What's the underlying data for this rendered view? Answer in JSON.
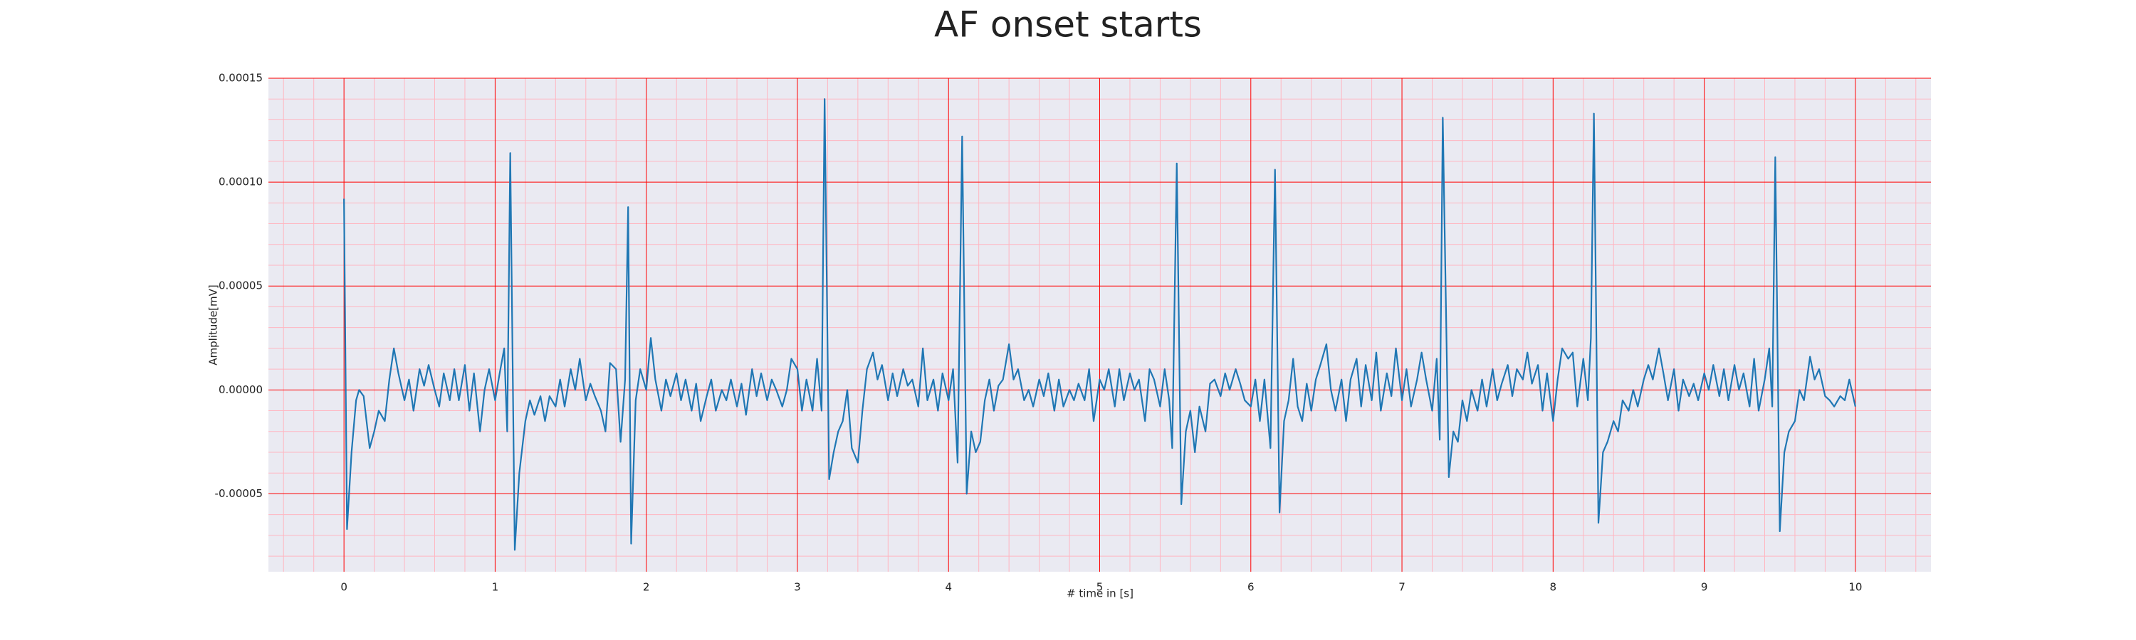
{
  "chart_data": {
    "type": "line",
    "title": "AF onset starts",
    "xlabel": "# time in [s]",
    "ylabel": "Amplitude[mV]",
    "color": "#1f77b4",
    "grid": true,
    "xlim": [
      -0.5,
      10.5
    ],
    "ylim": [
      -8.75e-05,
      0.00015
    ],
    "xticks": [
      0,
      1,
      2,
      3,
      4,
      5,
      6,
      7,
      8,
      9,
      10
    ],
    "yticks": [
      {
        "value": -5e-05,
        "label": "-0.00005"
      },
      {
        "value": 0,
        "label": "0.00000"
      },
      {
        "value": 5e-05,
        "label": "0.00005"
      },
      {
        "value": 0.0001,
        "label": "0.00010"
      },
      {
        "value": 0.00015,
        "label": "0.00015"
      }
    ],
    "x": [
      0,
      0.02,
      0.05,
      0.08,
      0.1,
      0.13,
      0.17,
      0.2,
      0.23,
      0.27,
      0.3,
      0.33,
      0.36,
      0.4,
      0.43,
      0.46,
      0.5,
      0.53,
      0.56,
      0.6,
      0.63,
      0.66,
      0.7,
      0.73,
      0.76,
      0.8,
      0.83,
      0.86,
      0.9,
      0.93,
      0.96,
      1.0,
      1.03,
      1.06,
      1.08,
      1.1,
      1.13,
      1.16,
      1.2,
      1.23,
      1.26,
      1.3,
      1.33,
      1.36,
      1.4,
      1.43,
      1.46,
      1.5,
      1.53,
      1.56,
      1.6,
      1.63,
      1.66,
      1.7,
      1.73,
      1.76,
      1.8,
      1.83,
      1.86,
      1.88,
      1.9,
      1.93,
      1.96,
      2.0,
      2.03,
      2.06,
      2.1,
      2.13,
      2.16,
      2.2,
      2.23,
      2.26,
      2.3,
      2.33,
      2.36,
      2.4,
      2.43,
      2.46,
      2.5,
      2.53,
      2.56,
      2.6,
      2.63,
      2.66,
      2.7,
      2.73,
      2.76,
      2.8,
      2.83,
      2.86,
      2.9,
      2.93,
      2.96,
      3.0,
      3.03,
      3.06,
      3.1,
      3.13,
      3.16,
      3.18,
      3.21,
      3.24,
      3.27,
      3.3,
      3.33,
      3.36,
      3.4,
      3.43,
      3.46,
      3.5,
      3.53,
      3.56,
      3.6,
      3.63,
      3.66,
      3.7,
      3.73,
      3.76,
      3.8,
      3.83,
      3.86,
      3.9,
      3.93,
      3.96,
      4.0,
      4.03,
      4.06,
      4.09,
      4.12,
      4.15,
      4.18,
      4.21,
      4.24,
      4.27,
      4.3,
      4.33,
      4.36,
      4.4,
      4.43,
      4.46,
      4.5,
      4.53,
      4.56,
      4.6,
      4.63,
      4.66,
      4.7,
      4.73,
      4.76,
      4.8,
      4.83,
      4.86,
      4.9,
      4.93,
      4.96,
      5.0,
      5.03,
      5.06,
      5.1,
      5.13,
      5.16,
      5.2,
      5.23,
      5.26,
      5.3,
      5.33,
      5.36,
      5.4,
      5.43,
      5.46,
      5.48,
      5.51,
      5.54,
      5.57,
      5.6,
      5.63,
      5.66,
      5.7,
      5.73,
      5.76,
      5.8,
      5.83,
      5.86,
      5.9,
      5.93,
      5.96,
      6.0,
      6.03,
      6.06,
      6.09,
      6.13,
      6.16,
      6.19,
      6.22,
      6.25,
      6.28,
      6.31,
      6.34,
      6.37,
      6.4,
      6.43,
      6.46,
      6.5,
      6.53,
      6.56,
      6.6,
      6.63,
      6.66,
      6.7,
      6.73,
      6.76,
      6.8,
      6.83,
      6.86,
      6.9,
      6.93,
      6.96,
      7.0,
      7.03,
      7.06,
      7.1,
      7.13,
      7.16,
      7.2,
      7.23,
      7.25,
      7.27,
      7.31,
      7.34,
      7.37,
      7.4,
      7.43,
      7.46,
      7.5,
      7.53,
      7.56,
      7.6,
      7.63,
      7.66,
      7.7,
      7.73,
      7.76,
      7.8,
      7.83,
      7.86,
      7.9,
      7.93,
      7.96,
      8.0,
      8.03,
      8.06,
      8.1,
      8.13,
      8.16,
      8.2,
      8.23,
      8.25,
      8.27,
      8.3,
      8.33,
      8.36,
      8.4,
      8.43,
      8.46,
      8.5,
      8.53,
      8.56,
      8.6,
      8.63,
      8.66,
      8.7,
      8.73,
      8.76,
      8.8,
      8.83,
      8.86,
      8.9,
      8.93,
      8.96,
      9.0,
      9.03,
      9.06,
      9.1,
      9.13,
      9.16,
      9.2,
      9.23,
      9.26,
      9.3,
      9.33,
      9.36,
      9.4,
      9.43,
      9.45,
      9.47,
      9.5,
      9.53,
      9.56,
      9.6,
      9.63,
      9.66,
      9.7,
      9.73,
      9.76,
      9.8,
      9.83,
      9.86,
      9.9,
      9.93,
      9.96,
      10.0
    ],
    "values": [
      9.2e-05,
      -6.7e-05,
      -3e-05,
      -5e-06,
      0,
      -3e-06,
      -2.8e-05,
      -2e-05,
      -1e-05,
      -1.5e-05,
      5e-06,
      2e-05,
      8e-06,
      -5e-06,
      5e-06,
      -1e-05,
      1e-05,
      2e-06,
      1.2e-05,
      0,
      -8e-06,
      8e-06,
      -5e-06,
      1e-05,
      -5e-06,
      1.2e-05,
      -1e-05,
      8e-06,
      -2e-05,
      0,
      1e-05,
      -5e-06,
      8e-06,
      2e-05,
      -2e-05,
      0.000114,
      -7.7e-05,
      -4e-05,
      -1.5e-05,
      -5e-06,
      -1.2e-05,
      -3e-06,
      -1.5e-05,
      -3e-06,
      -8e-06,
      5e-06,
      -8e-06,
      1e-05,
      0,
      1.5e-05,
      -5e-06,
      3e-06,
      -3e-06,
      -1e-05,
      -2e-05,
      1.3e-05,
      1e-05,
      -2.5e-05,
      5e-06,
      8.8e-05,
      -7.4e-05,
      -5e-06,
      1e-05,
      0,
      2.5e-05,
      5e-06,
      -1e-05,
      5e-06,
      -3e-06,
      8e-06,
      -5e-06,
      5e-06,
      -1e-05,
      3e-06,
      -1.5e-05,
      -3e-06,
      5e-06,
      -1e-05,
      0,
      -5e-06,
      5e-06,
      -8e-06,
      3e-06,
      -1.2e-05,
      1e-05,
      -3e-06,
      8e-06,
      -5e-06,
      5e-06,
      0,
      -8e-06,
      0,
      1.5e-05,
      1e-05,
      -1e-05,
      5e-06,
      -1e-05,
      1.5e-05,
      -1e-05,
      0.00014,
      -4.3e-05,
      -3e-05,
      -2e-05,
      -1.5e-05,
      0,
      -2.8e-05,
      -3.5e-05,
      -1e-05,
      1e-05,
      1.8e-05,
      5e-06,
      1.2e-05,
      -5e-06,
      8e-06,
      -3e-06,
      1e-05,
      2e-06,
      5e-06,
      -8e-06,
      2e-05,
      -5e-06,
      5e-06,
      -1e-05,
      8e-06,
      -5e-06,
      1e-05,
      -3.5e-05,
      0.000122,
      -5e-05,
      -2e-05,
      -3e-05,
      -2.5e-05,
      -5e-06,
      5e-06,
      -1e-05,
      2e-06,
      5e-06,
      2.2e-05,
      5e-06,
      1e-05,
      -5e-06,
      0,
      -8e-06,
      5e-06,
      -3e-06,
      8e-06,
      -1e-05,
      5e-06,
      -8e-06,
      0,
      -5e-06,
      3e-06,
      -5e-06,
      1e-05,
      -1.5e-05,
      5e-06,
      0,
      1e-05,
      -8e-06,
      1e-05,
      -5e-06,
      8e-06,
      0,
      5e-06,
      -1.5e-05,
      1e-05,
      5e-06,
      -8e-06,
      1e-05,
      -5e-06,
      -2.8e-05,
      0.000109,
      -5.5e-05,
      -2e-05,
      -1e-05,
      -3e-05,
      -8e-06,
      -2e-05,
      3e-06,
      5e-06,
      -3e-06,
      8e-06,
      0,
      1e-05,
      3e-06,
      -5e-06,
      -8e-06,
      5e-06,
      -1.5e-05,
      5e-06,
      -2.8e-05,
      0.000106,
      -5.9e-05,
      -1.5e-05,
      -5e-06,
      1.5e-05,
      -8e-06,
      -1.5e-05,
      3e-06,
      -1e-05,
      5e-06,
      1.2e-05,
      2.2e-05,
      0,
      -1e-05,
      5e-06,
      -1.5e-05,
      5e-06,
      1.5e-05,
      -8e-06,
      1.2e-05,
      -5e-06,
      1.8e-05,
      -1e-05,
      8e-06,
      -3e-06,
      2e-05,
      -5e-06,
      1e-05,
      -8e-06,
      5e-06,
      1.8e-05,
      5e-06,
      -1e-05,
      1.5e-05,
      -2.4e-05,
      0.000131,
      -4.2e-05,
      -2e-05,
      -2.5e-05,
      -5e-06,
      -1.5e-05,
      0,
      -1e-05,
      5e-06,
      -8e-06,
      1e-05,
      -5e-06,
      3e-06,
      1.2e-05,
      -3e-06,
      1e-05,
      5e-06,
      1.8e-05,
      3e-06,
      1.2e-05,
      -1e-05,
      8e-06,
      -1.5e-05,
      5e-06,
      2e-05,
      1.5e-05,
      1.8e-05,
      -8e-06,
      1.5e-05,
      -5e-06,
      2.5e-05,
      0.000133,
      -6.4e-05,
      -3e-05,
      -2.5e-05,
      -1.5e-05,
      -2e-05,
      -5e-06,
      -1e-05,
      0,
      -8e-06,
      5e-06,
      1.2e-05,
      5e-06,
      2e-05,
      8e-06,
      -5e-06,
      1e-05,
      -1e-05,
      5e-06,
      -3e-06,
      3e-06,
      -5e-06,
      8e-06,
      0,
      1.2e-05,
      -3e-06,
      1e-05,
      -5e-06,
      1.2e-05,
      0,
      8e-06,
      -8e-06,
      1.5e-05,
      -1e-05,
      5e-06,
      2e-05,
      -8e-06,
      0.000112,
      -6.8e-05,
      -3e-05,
      -2e-05,
      -1.5e-05,
      0,
      -5e-06,
      1.6e-05,
      5e-06,
      1e-05,
      -3e-06,
      -5e-06,
      -8e-06,
      -3e-06,
      -5e-06,
      5e-06,
      -8e-06
    ]
  }
}
